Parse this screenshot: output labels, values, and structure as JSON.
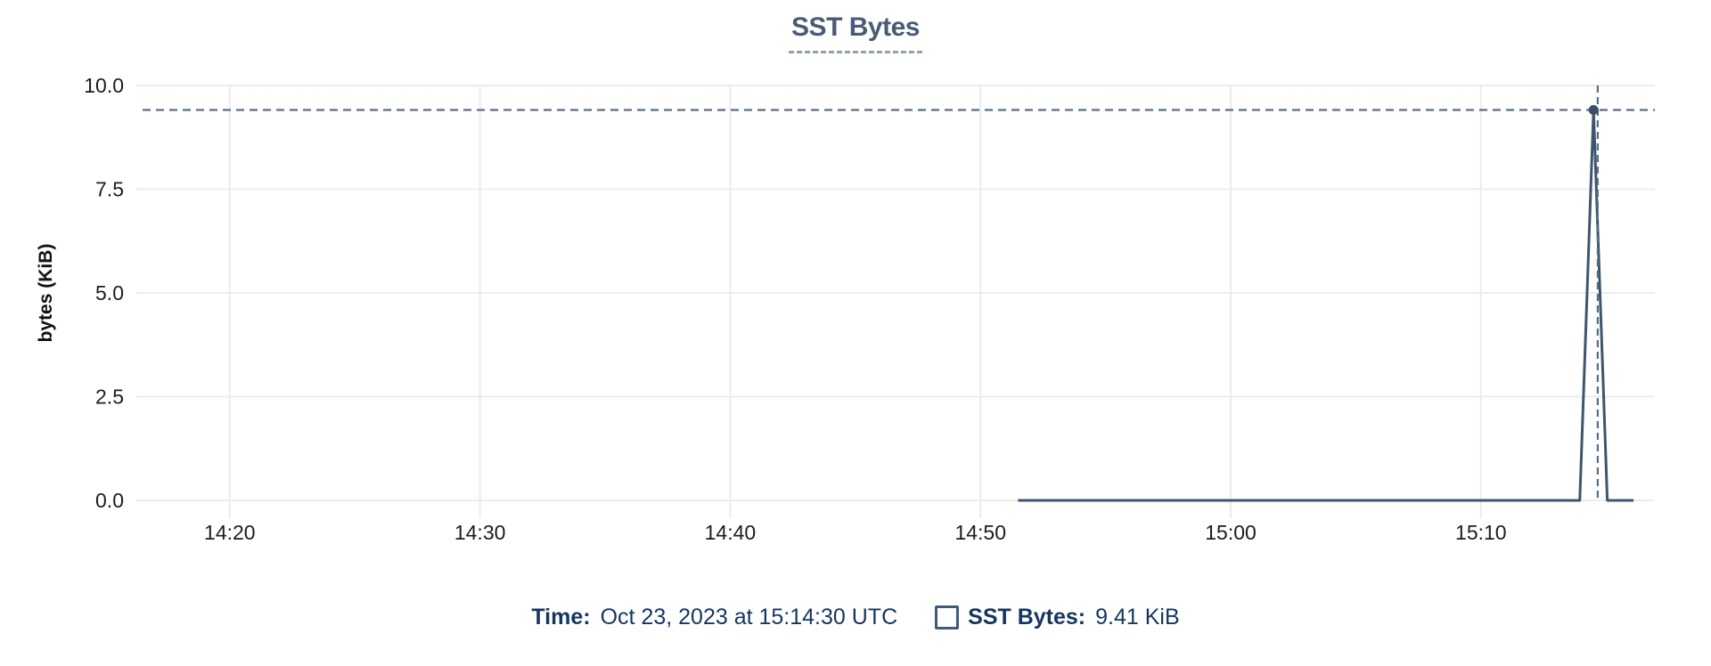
{
  "title": "SST Bytes",
  "tooltip": {
    "time_label": "Time:",
    "time_value": "Oct 23, 2023 at 15:14:30 UTC",
    "series_label": "SST Bytes:",
    "series_value": "9.41 KiB"
  },
  "colors": {
    "background": "#ffffff",
    "series_line": "#3e556d",
    "marker": "#3b5068",
    "crosshair": "#567087",
    "grid": "#ececec",
    "title": "#4a5b76",
    "title_underline": "#94a1b3",
    "tooltip_text": "#14365f",
    "legend_swatch_border": "#3f5c7c",
    "tick_label": "#1c1c1c"
  },
  "chart_data": {
    "type": "line",
    "title": "SST Bytes",
    "xlabel": "",
    "ylabel": "bytes (KiB)",
    "x_ticks": [
      "14:20",
      "14:30",
      "14:40",
      "14:50",
      "15:00",
      "15:10"
    ],
    "y_ticks": [
      0,
      2.5,
      5,
      7.5,
      10
    ],
    "y_tick_labels": [
      "0.0",
      "2.5",
      "5.0",
      "7.5",
      "10.0"
    ],
    "xlim": [
      "14:16:16",
      "15:16:57"
    ],
    "ylim": [
      0,
      10
    ],
    "grid": true,
    "legend_position": "bottom",
    "series": [
      {
        "name": "SST Bytes",
        "unit": "KiB",
        "points": [
          [
            "14:51:30",
            0
          ],
          [
            "15:13:57",
            0
          ],
          [
            "15:14:30",
            9.41
          ],
          [
            "15:15:03",
            0
          ],
          [
            "15:16:06",
            0
          ]
        ]
      }
    ],
    "highlight": {
      "time": "15:14:30",
      "value_kib": 9.41,
      "crosshair_time": "15:14:40"
    }
  }
}
